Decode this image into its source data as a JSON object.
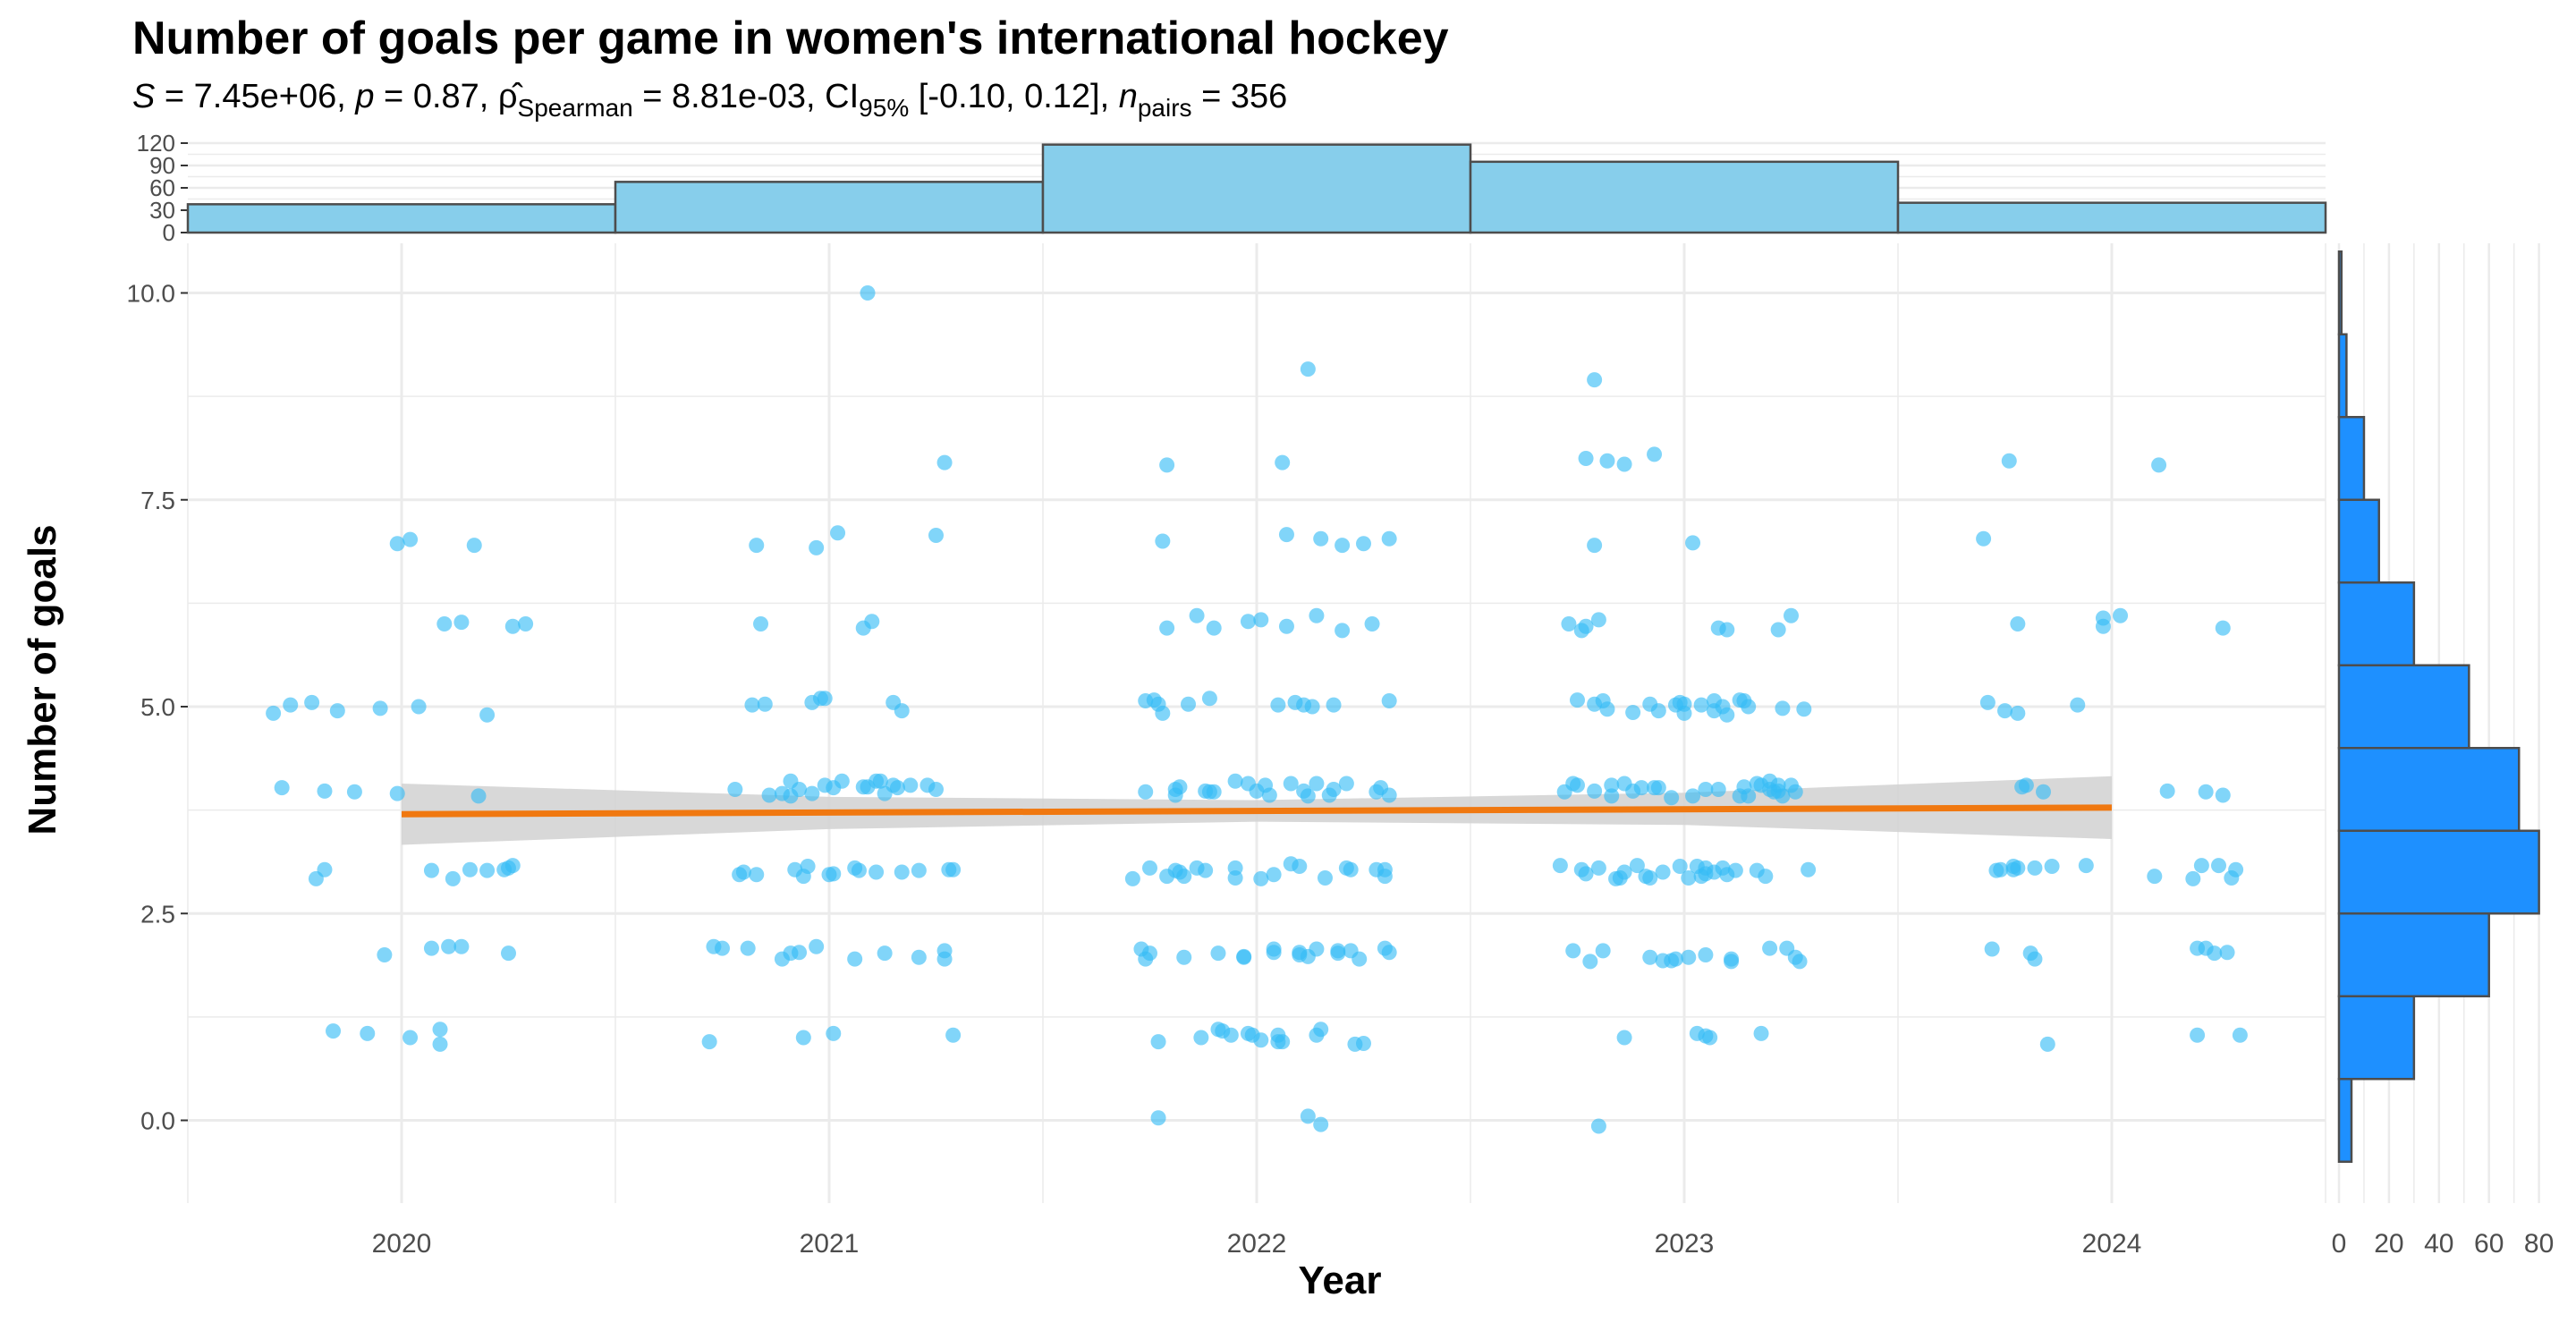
{
  "chart_data": {
    "type": "scatter",
    "title": "Number of goals per game in women's international hockey",
    "subtitle": {
      "S": "7.45e+06",
      "p": "0.87",
      "rho": "8.81e-03",
      "ci": "[-0.10, 0.12]",
      "n": "356"
    },
    "xlabel": "Year",
    "ylabel": "Number of goals",
    "xlim": [
      2019.5,
      2024.5
    ],
    "ylim": [
      -1.0,
      10.6
    ],
    "x_ticks": [
      2020,
      2021,
      2022,
      2023,
      2024
    ],
    "x_tick_labels": [
      "2020",
      "2021",
      "2022",
      "2023",
      "2024"
    ],
    "y_ticks": [
      0.0,
      2.5,
      5.0,
      7.5,
      10.0
    ],
    "y_tick_labels": [
      "0.0",
      "2.5",
      "5.0",
      "7.5",
      "10.0"
    ],
    "grid": true,
    "colors": {
      "points": "#33bbf5",
      "trend_line": "#f07810",
      "confidence_band": "#d4d4d4",
      "top_histogram": "#87ceeb",
      "side_histogram": "#1e90ff",
      "bar_edge": "#4d4d4d",
      "grid": "#ebebeb"
    },
    "points": [
      [
        2019.7,
        4.92
      ],
      [
        2019.72,
        4.02
      ],
      [
        2019.74,
        5.02
      ],
      [
        2019.79,
        5.05
      ],
      [
        2019.8,
        2.92
      ],
      [
        2019.82,
        3.03
      ],
      [
        2019.82,
        3.98
      ],
      [
        2019.85,
        4.95
      ],
      [
        2019.89,
        3.97
      ],
      [
        2019.84,
        1.08
      ],
      [
        2019.92,
        1.05
      ],
      [
        2019.95,
        4.98
      ],
      [
        2019.96,
        2.0
      ],
      [
        2019.99,
        3.95
      ],
      [
        2019.99,
        6.97
      ],
      [
        2020.02,
        7.02
      ],
      [
        2020.02,
        1.0
      ],
      [
        2020.04,
        5.0
      ],
      [
        2020.07,
        2.08
      ],
      [
        2020.07,
        3.02
      ],
      [
        2020.1,
        6.0
      ],
      [
        2020.11,
        2.1
      ],
      [
        2020.09,
        1.1
      ],
      [
        2020.09,
        0.92
      ],
      [
        2020.12,
        2.92
      ],
      [
        2020.14,
        6.02
      ],
      [
        2020.14,
        2.1
      ],
      [
        2020.16,
        3.03
      ],
      [
        2020.18,
        3.92
      ],
      [
        2020.17,
        6.95
      ],
      [
        2020.2,
        3.02
      ],
      [
        2020.2,
        4.9
      ],
      [
        2020.24,
        3.03
      ],
      [
        2020.25,
        2.02
      ],
      [
        2020.25,
        3.05
      ],
      [
        2020.26,
        3.08
      ],
      [
        2020.26,
        5.97
      ],
      [
        2020.29,
        6.0
      ],
      [
        2020.72,
        0.95
      ],
      [
        2020.73,
        2.1
      ],
      [
        2020.75,
        2.08
      ],
      [
        2020.78,
        4.0
      ],
      [
        2020.79,
        2.97
      ],
      [
        2020.8,
        3.0
      ],
      [
        2020.81,
        2.08
      ],
      [
        2020.82,
        5.02
      ],
      [
        2020.83,
        2.97
      ],
      [
        2020.83,
        6.95
      ],
      [
        2020.84,
        6.0
      ],
      [
        2020.85,
        5.03
      ],
      [
        2020.86,
        3.93
      ],
      [
        2020.89,
        1.95
      ],
      [
        2020.89,
        3.95
      ],
      [
        2020.91,
        2.02
      ],
      [
        2020.91,
        4.1
      ],
      [
        2020.91,
        3.92
      ],
      [
        2020.92,
        3.03
      ],
      [
        2020.93,
        2.03
      ],
      [
        2020.93,
        4.0
      ],
      [
        2020.94,
        2.95
      ],
      [
        2020.94,
        1.0
      ],
      [
        2020.95,
        3.07
      ],
      [
        2020.96,
        5.05
      ],
      [
        2020.96,
        3.95
      ],
      [
        2020.97,
        6.92
      ],
      [
        2020.97,
        2.1
      ],
      [
        2020.98,
        5.1
      ],
      [
        2020.99,
        5.1
      ],
      [
        2020.99,
        4.05
      ],
      [
        2021.0,
        2.97
      ],
      [
        2021.01,
        2.98
      ],
      [
        2021.01,
        4.02
      ],
      [
        2021.01,
        1.05
      ],
      [
        2021.02,
        7.1
      ],
      [
        2021.03,
        4.1
      ],
      [
        2021.06,
        3.05
      ],
      [
        2021.07,
        3.02
      ],
      [
        2021.06,
        1.95
      ],
      [
        2021.08,
        4.03
      ],
      [
        2021.08,
        5.95
      ],
      [
        2021.09,
        4.03
      ],
      [
        2021.09,
        10.0
      ],
      [
        2021.1,
        6.03
      ],
      [
        2021.11,
        4.1
      ],
      [
        2021.11,
        3.0
      ],
      [
        2021.12,
        4.1
      ],
      [
        2021.13,
        2.02
      ],
      [
        2021.13,
        3.95
      ],
      [
        2021.15,
        4.05
      ],
      [
        2021.15,
        5.05
      ],
      [
        2021.16,
        4.02
      ],
      [
        2021.17,
        4.95
      ],
      [
        2021.17,
        3.0
      ],
      [
        2021.19,
        4.05
      ],
      [
        2021.21,
        3.02
      ],
      [
        2021.21,
        1.97
      ],
      [
        2021.23,
        4.05
      ],
      [
        2021.25,
        4.0
      ],
      [
        2021.25,
        7.07
      ],
      [
        2021.27,
        2.05
      ],
      [
        2021.27,
        1.95
      ],
      [
        2021.27,
        7.95
      ],
      [
        2021.28,
        3.03
      ],
      [
        2021.29,
        3.03
      ],
      [
        2021.29,
        1.03
      ],
      [
        2021.71,
        2.92
      ],
      [
        2021.73,
        2.07
      ],
      [
        2021.74,
        1.95
      ],
      [
        2021.74,
        5.07
      ],
      [
        2021.74,
        3.97
      ],
      [
        2021.75,
        2.02
      ],
      [
        2021.75,
        3.05
      ],
      [
        2021.76,
        5.08
      ],
      [
        2021.77,
        5.03
      ],
      [
        2021.77,
        0.95
      ],
      [
        2021.77,
        0.03
      ],
      [
        2021.78,
        4.92
      ],
      [
        2021.78,
        7.0
      ],
      [
        2021.79,
        7.92
      ],
      [
        2021.79,
        5.95
      ],
      [
        2021.79,
        2.95
      ],
      [
        2021.81,
        4.0
      ],
      [
        2021.81,
        3.93
      ],
      [
        2021.81,
        3.02
      ],
      [
        2021.82,
        4.03
      ],
      [
        2021.82,
        3.0
      ],
      [
        2021.83,
        1.97
      ],
      [
        2021.83,
        2.95
      ],
      [
        2021.84,
        5.03
      ],
      [
        2021.86,
        3.05
      ],
      [
        2021.86,
        6.1
      ],
      [
        2021.87,
        1.0
      ],
      [
        2021.88,
        3.98
      ],
      [
        2021.88,
        3.02
      ],
      [
        2021.89,
        5.1
      ],
      [
        2021.89,
        3.97
      ],
      [
        2021.9,
        5.95
      ],
      [
        2021.9,
        3.97
      ],
      [
        2021.91,
        2.02
      ],
      [
        2021.91,
        1.1
      ],
      [
        2021.92,
        1.08
      ],
      [
        2021.94,
        1.03
      ],
      [
        2021.95,
        2.93
      ],
      [
        2021.95,
        3.05
      ],
      [
        2021.95,
        4.1
      ],
      [
        2021.97,
        1.98
      ],
      [
        2021.97,
        1.97
      ],
      [
        2021.98,
        1.05
      ],
      [
        2021.98,
        4.07
      ],
      [
        2021.98,
        6.03
      ],
      [
        2021.99,
        1.03
      ],
      [
        2022.0,
        3.98
      ],
      [
        2022.01,
        6.05
      ],
      [
        2022.01,
        2.92
      ],
      [
        2022.01,
        0.97
      ],
      [
        2022.02,
        4.05
      ],
      [
        2022.03,
        3.93
      ],
      [
        2022.04,
        2.07
      ],
      [
        2022.04,
        2.03
      ],
      [
        2022.04,
        2.97
      ],
      [
        2022.05,
        5.02
      ],
      [
        2022.05,
        1.03
      ],
      [
        2022.05,
        0.95
      ],
      [
        2022.06,
        7.95
      ],
      [
        2022.06,
        0.95
      ],
      [
        2022.07,
        5.97
      ],
      [
        2022.07,
        7.08
      ],
      [
        2022.08,
        3.1
      ],
      [
        2022.08,
        4.07
      ],
      [
        2022.09,
        5.05
      ],
      [
        2022.1,
        3.07
      ],
      [
        2022.1,
        2.03
      ],
      [
        2022.1,
        2.0
      ],
      [
        2022.11,
        3.98
      ],
      [
        2022.11,
        5.02
      ],
      [
        2022.12,
        9.08
      ],
      [
        2022.12,
        0.05
      ],
      [
        2022.12,
        3.92
      ],
      [
        2022.12,
        1.98
      ],
      [
        2022.13,
        5.0
      ],
      [
        2022.14,
        2.07
      ],
      [
        2022.14,
        4.07
      ],
      [
        2022.14,
        6.1
      ],
      [
        2022.14,
        1.03
      ],
      [
        2022.15,
        7.03
      ],
      [
        2022.15,
        -0.05
      ],
      [
        2022.15,
        1.1
      ],
      [
        2022.16,
        2.93
      ],
      [
        2022.17,
        3.93
      ],
      [
        2022.18,
        5.02
      ],
      [
        2022.18,
        4.0
      ],
      [
        2022.19,
        2.02
      ],
      [
        2022.19,
        2.05
      ],
      [
        2022.2,
        5.92
      ],
      [
        2022.2,
        6.95
      ],
      [
        2022.21,
        4.07
      ],
      [
        2022.21,
        3.05
      ],
      [
        2022.22,
        2.05
      ],
      [
        2022.22,
        3.03
      ],
      [
        2022.23,
        0.92
      ],
      [
        2022.24,
        1.95
      ],
      [
        2022.25,
        0.93
      ],
      [
        2022.25,
        6.97
      ],
      [
        2022.27,
        6.0
      ],
      [
        2022.28,
        3.03
      ],
      [
        2022.28,
        3.97
      ],
      [
        2022.29,
        4.02
      ],
      [
        2022.3,
        3.03
      ],
      [
        2022.3,
        2.08
      ],
      [
        2022.3,
        2.95
      ],
      [
        2022.31,
        7.03
      ],
      [
        2022.31,
        5.07
      ],
      [
        2022.31,
        2.03
      ],
      [
        2022.31,
        3.93
      ],
      [
        2022.71,
        3.08
      ],
      [
        2022.72,
        3.97
      ],
      [
        2022.73,
        6.0
      ],
      [
        2022.74,
        4.07
      ],
      [
        2022.74,
        2.05
      ],
      [
        2022.75,
        4.05
      ],
      [
        2022.75,
        5.08
      ],
      [
        2022.76,
        5.92
      ],
      [
        2022.76,
        3.03
      ],
      [
        2022.77,
        8.0
      ],
      [
        2022.77,
        5.97
      ],
      [
        2022.77,
        2.98
      ],
      [
        2022.78,
        1.92
      ],
      [
        2022.79,
        3.98
      ],
      [
        2022.79,
        5.03
      ],
      [
        2022.79,
        6.95
      ],
      [
        2022.79,
        8.95
      ],
      [
        2022.8,
        3.05
      ],
      [
        2022.8,
        -0.07
      ],
      [
        2022.8,
        6.05
      ],
      [
        2022.81,
        5.07
      ],
      [
        2022.81,
        2.05
      ],
      [
        2022.82,
        7.97
      ],
      [
        2022.82,
        4.97
      ],
      [
        2022.83,
        4.05
      ],
      [
        2022.83,
        3.92
      ],
      [
        2022.84,
        2.92
      ],
      [
        2022.85,
        2.93
      ],
      [
        2022.86,
        7.93
      ],
      [
        2022.86,
        4.07
      ],
      [
        2022.86,
        1.0
      ],
      [
        2022.86,
        3.0
      ],
      [
        2022.88,
        4.93
      ],
      [
        2022.88,
        3.98
      ],
      [
        2022.89,
        3.08
      ],
      [
        2022.9,
        4.02
      ],
      [
        2022.91,
        2.95
      ],
      [
        2022.92,
        1.97
      ],
      [
        2022.92,
        2.93
      ],
      [
        2022.92,
        5.03
      ],
      [
        2022.93,
        4.02
      ],
      [
        2022.93,
        8.05
      ],
      [
        2022.94,
        4.95
      ],
      [
        2022.94,
        4.02
      ],
      [
        2022.95,
        3.0
      ],
      [
        2022.95,
        1.93
      ],
      [
        2022.97,
        3.9
      ],
      [
        2022.97,
        1.93
      ],
      [
        2022.98,
        5.02
      ],
      [
        2022.98,
        1.95
      ],
      [
        2022.99,
        3.07
      ],
      [
        2022.99,
        5.05
      ],
      [
        2023.0,
        5.03
      ],
      [
        2023.0,
        4.92
      ],
      [
        2023.01,
        1.97
      ],
      [
        2023.01,
        2.93
      ],
      [
        2023.02,
        3.92
      ],
      [
        2023.02,
        6.98
      ],
      [
        2023.03,
        1.05
      ],
      [
        2023.03,
        3.07
      ],
      [
        2023.04,
        2.95
      ],
      [
        2023.04,
        5.02
      ],
      [
        2023.05,
        2.0
      ],
      [
        2023.05,
        4.0
      ],
      [
        2023.05,
        3.05
      ],
      [
        2023.05,
        2.98
      ],
      [
        2023.05,
        1.02
      ],
      [
        2023.06,
        1.0
      ],
      [
        2023.07,
        5.07
      ],
      [
        2023.07,
        3.0
      ],
      [
        2023.07,
        4.95
      ],
      [
        2023.08,
        4.0
      ],
      [
        2023.08,
        5.95
      ],
      [
        2023.09,
        5.0
      ],
      [
        2023.09,
        3.05
      ],
      [
        2023.1,
        4.9
      ],
      [
        2023.1,
        5.93
      ],
      [
        2023.1,
        2.97
      ],
      [
        2023.11,
        1.95
      ],
      [
        2023.11,
        1.92
      ],
      [
        2023.12,
        3.02
      ],
      [
        2023.13,
        3.92
      ],
      [
        2023.13,
        5.08
      ],
      [
        2023.14,
        5.07
      ],
      [
        2023.14,
        4.03
      ],
      [
        2023.15,
        5.0
      ],
      [
        2023.15,
        3.92
      ],
      [
        2023.17,
        4.07
      ],
      [
        2023.17,
        3.02
      ],
      [
        2023.18,
        1.05
      ],
      [
        2023.18,
        4.05
      ],
      [
        2023.19,
        2.95
      ],
      [
        2023.2,
        4.1
      ],
      [
        2023.2,
        2.08
      ],
      [
        2023.2,
        4.0
      ],
      [
        2023.21,
        3.97
      ],
      [
        2023.22,
        3.98
      ],
      [
        2023.22,
        5.93
      ],
      [
        2023.22,
        4.05
      ],
      [
        2023.23,
        3.92
      ],
      [
        2023.23,
        4.98
      ],
      [
        2023.24,
        2.08
      ],
      [
        2023.25,
        6.1
      ],
      [
        2023.25,
        4.05
      ],
      [
        2023.26,
        1.97
      ],
      [
        2023.26,
        3.97
      ],
      [
        2023.27,
        1.92
      ],
      [
        2023.28,
        4.97
      ],
      [
        2023.29,
        3.03
      ],
      [
        2023.7,
        7.03
      ],
      [
        2023.71,
        5.05
      ],
      [
        2023.72,
        2.07
      ],
      [
        2023.73,
        3.02
      ],
      [
        2023.74,
        3.03
      ],
      [
        2023.75,
        4.95
      ],
      [
        2023.76,
        7.97
      ],
      [
        2023.77,
        3.03
      ],
      [
        2023.77,
        3.07
      ],
      [
        2023.78,
        6.0
      ],
      [
        2023.78,
        3.05
      ],
      [
        2023.78,
        4.92
      ],
      [
        2023.79,
        4.03
      ],
      [
        2023.8,
        4.05
      ],
      [
        2023.81,
        2.02
      ],
      [
        2023.82,
        3.05
      ],
      [
        2023.82,
        1.95
      ],
      [
        2023.84,
        3.97
      ],
      [
        2023.85,
        0.92
      ],
      [
        2023.86,
        3.07
      ],
      [
        2023.92,
        5.02
      ],
      [
        2023.94,
        3.08
      ],
      [
        2023.98,
        5.97
      ],
      [
        2023.98,
        6.07
      ],
      [
        2024.02,
        6.1
      ],
      [
        2024.1,
        2.95
      ],
      [
        2024.11,
        7.92
      ],
      [
        2024.13,
        3.98
      ],
      [
        2024.19,
        2.92
      ],
      [
        2024.2,
        2.08
      ],
      [
        2024.2,
        1.03
      ],
      [
        2024.21,
        3.08
      ],
      [
        2024.22,
        3.97
      ],
      [
        2024.22,
        2.08
      ],
      [
        2024.24,
        2.02
      ],
      [
        2024.25,
        3.08
      ],
      [
        2024.26,
        3.93
      ],
      [
        2024.26,
        5.95
      ],
      [
        2024.27,
        2.03
      ],
      [
        2024.28,
        2.93
      ],
      [
        2024.29,
        3.03
      ],
      [
        2024.3,
        1.03
      ]
    ],
    "trend_line": {
      "x": [
        2020,
        2024
      ],
      "y": [
        3.7,
        3.78
      ]
    },
    "confidence_band": {
      "x": [
        2020,
        2021,
        2022,
        2023,
        2024
      ],
      "lower": [
        3.33,
        3.52,
        3.61,
        3.57,
        3.4
      ],
      "upper": [
        4.07,
        3.91,
        3.87,
        3.96,
        4.16
      ]
    },
    "top_histogram": {
      "bin_edges": [
        2019.5,
        2020.5,
        2021.5,
        2022.5,
        2023.5,
        2024.5
      ],
      "counts": [
        38,
        68,
        118,
        95,
        40
      ],
      "y_ticks": [
        0,
        30,
        60,
        90,
        120
      ],
      "y_tick_labels": [
        "0",
        "30",
        "60",
        "90",
        "120"
      ],
      "ylim": [
        0,
        120
      ]
    },
    "side_histogram": {
      "bin_edges": [
        -0.5,
        0.5,
        1.5,
        2.5,
        3.5,
        4.5,
        5.5,
        6.5,
        7.5,
        8.5,
        9.5,
        10.5
      ],
      "counts": [
        5,
        30,
        60,
        80,
        72,
        52,
        30,
        16,
        10,
        3,
        1
      ],
      "x_ticks": [
        0,
        20,
        40,
        60,
        80
      ],
      "x_tick_labels": [
        "0",
        "20",
        "40",
        "60",
        "80"
      ],
      "xlim": [
        0,
        83
      ]
    }
  }
}
